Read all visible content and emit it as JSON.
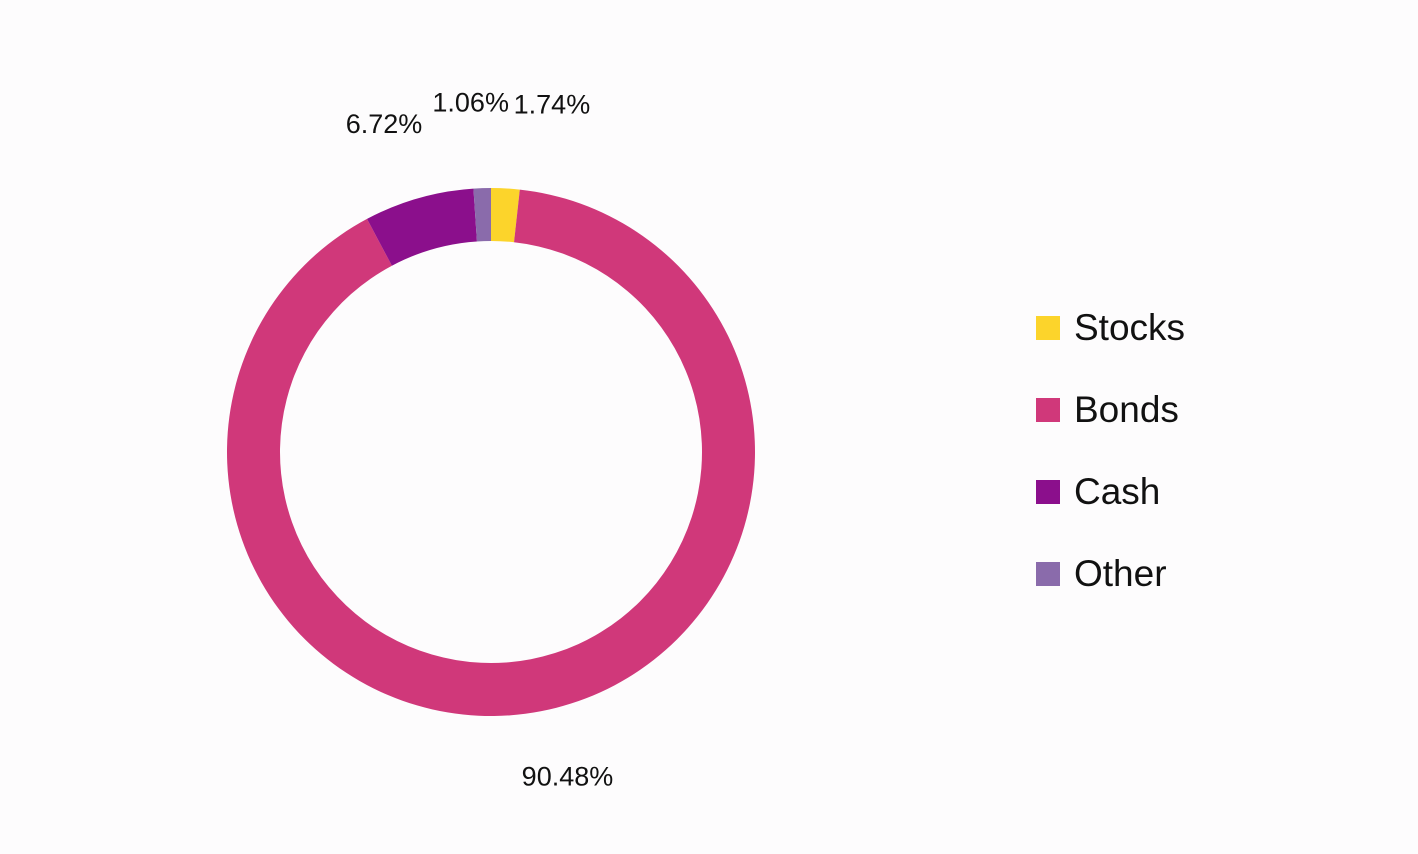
{
  "chart_data": {
    "type": "pie",
    "donut": true,
    "start_angle_deg": 0,
    "direction": "clockwise",
    "legend_position": "right",
    "slices": [
      {
        "label": "Stocks",
        "value": 1.74,
        "display": "1.74%",
        "color": "#fcd42b"
      },
      {
        "label": "Bonds",
        "value": 90.48,
        "display": "90.48%",
        "color": "#d0387a"
      },
      {
        "label": "Cash",
        "value": 6.72,
        "display": "6.72%",
        "color": "#8b0f8c"
      },
      {
        "label": "Other",
        "value": 1.06,
        "display": "1.06%",
        "color": "#8a6bab"
      }
    ]
  }
}
